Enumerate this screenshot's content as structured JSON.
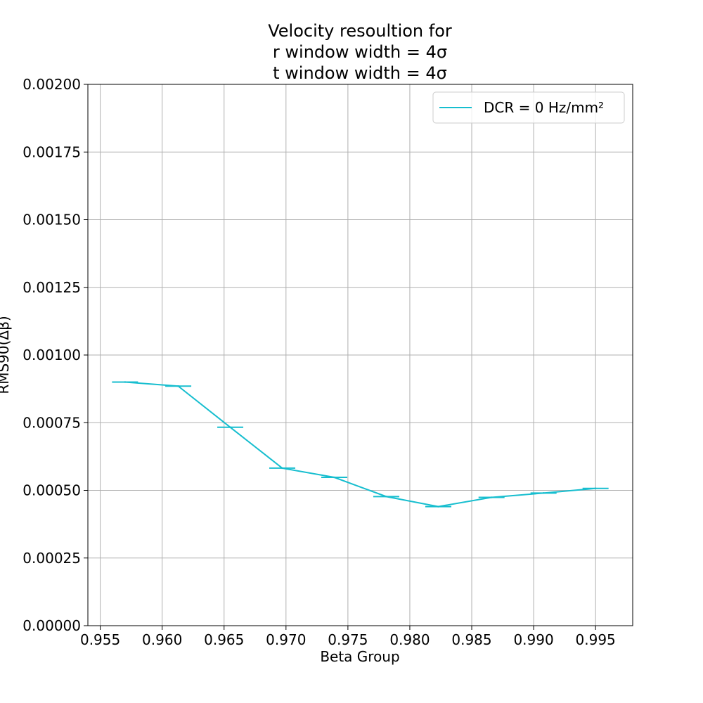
{
  "chart_data": {
    "type": "line",
    "title_lines": [
      "Velocity resoultion for",
      "r window width = 4σ",
      "t window width = 4σ"
    ],
    "xlabel": "Beta Group",
    "ylabel": "RMS90(Δβ)",
    "xlim": [
      0.954,
      0.998
    ],
    "ylim": [
      0.0,
      0.002
    ],
    "xticks": [
      0.955,
      0.96,
      0.965,
      0.97,
      0.975,
      0.98,
      0.985,
      0.99,
      0.995
    ],
    "xtick_labels": [
      "0.955",
      "0.960",
      "0.965",
      "0.970",
      "0.975",
      "0.980",
      "0.985",
      "0.990",
      "0.995"
    ],
    "yticks": [
      0.0,
      0.00025,
      0.0005,
      0.00075,
      0.001,
      0.00125,
      0.0015,
      0.00175,
      0.002
    ],
    "ytick_labels": [
      "0.00000",
      "0.00025",
      "0.00050",
      "0.00075",
      "0.00100",
      "0.00125",
      "0.00150",
      "0.00175",
      "0.00200"
    ],
    "grid": true,
    "legend_position": "top-right",
    "color": "#17becf",
    "series": [
      {
        "name": "DCR = 0 Hz/mm²",
        "x": [
          0.957,
          0.9613,
          0.9655,
          0.9697,
          0.9739,
          0.9781,
          0.9823,
          0.9866,
          0.9908,
          0.995
        ],
        "y": [
          0.0009,
          0.000885,
          0.000733,
          0.000582,
          0.000548,
          0.000477,
          0.00044,
          0.000474,
          0.00049,
          0.000507
        ],
        "xerr": [
          0.00105,
          0.00105,
          0.00105,
          0.00105,
          0.00105,
          0.00105,
          0.00105,
          0.00105,
          0.00105,
          0.00105
        ],
        "yerr": [
          3e-06,
          3e-06,
          3e-06,
          3e-06,
          3e-06,
          3e-06,
          3e-06,
          3e-06,
          3e-06,
          3e-06
        ]
      }
    ]
  }
}
